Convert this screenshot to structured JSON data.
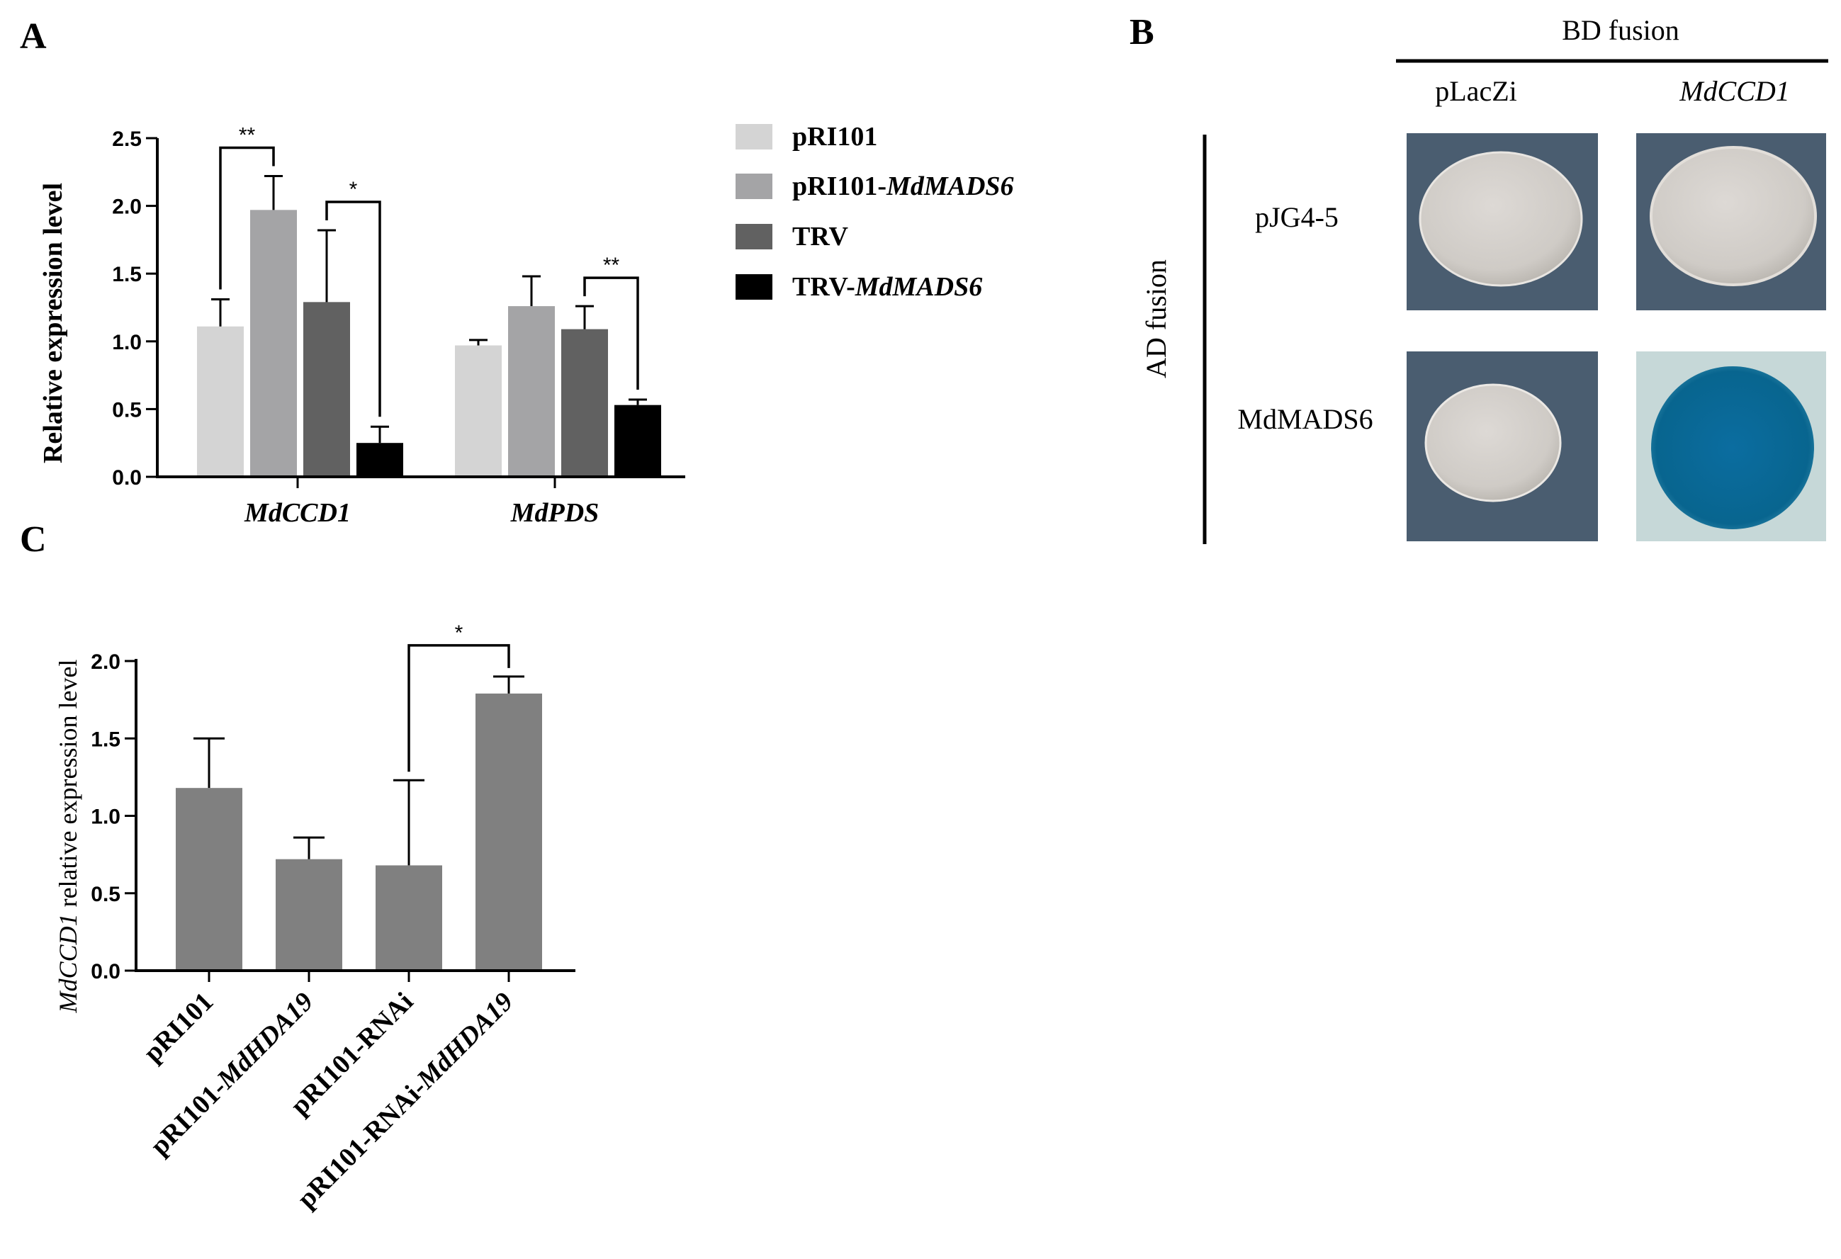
{
  "chart_data": [
    {
      "panel": "A",
      "type": "bar",
      "ylabel": "Relative expression level",
      "ylim": [
        0,
        2.5
      ],
      "yticks": [
        "0.0",
        "0.5",
        "1.0",
        "1.5",
        "2.0",
        "2.5"
      ],
      "categories": [
        "MdCCD1",
        "MdPDS"
      ],
      "series": [
        {
          "name": "pRI101",
          "legend_plain": "pRI101",
          "legend_italic": "",
          "color": "#d4d4d4",
          "values": [
            1.11,
            0.97
          ],
          "errors": [
            0.2,
            0.04
          ]
        },
        {
          "name": "pRI101-MdMADS6",
          "legend_plain": "pRI101-",
          "legend_italic": "MdMADS6",
          "color": "#a4a4a6",
          "values": [
            1.97,
            1.26
          ],
          "errors": [
            0.25,
            0.22
          ]
        },
        {
          "name": "TRV",
          "legend_plain": "TRV",
          "legend_italic": "",
          "color": "#616161",
          "values": [
            1.29,
            1.09
          ],
          "errors": [
            0.53,
            0.17
          ]
        },
        {
          "name": "TRV-MdMADS6",
          "legend_plain": "TRV-",
          "legend_italic": "MdMADS6",
          "color": "#000000",
          "values": [
            0.25,
            0.53
          ],
          "errors": [
            0.12,
            0.04
          ]
        }
      ],
      "significance": [
        {
          "category": 0,
          "from": 0,
          "to": 1,
          "label": "**"
        },
        {
          "category": 0,
          "from": 2,
          "to": 3,
          "label": "*"
        },
        {
          "category": 1,
          "from": 2,
          "to": 3,
          "label": "**"
        }
      ]
    },
    {
      "panel": "C",
      "type": "bar",
      "ylabel_italic": "MdCCD1",
      "ylabel_rest": " relative expression level",
      "ylim": [
        0,
        2.0
      ],
      "yticks": [
        "0.0",
        "0.5",
        "1.0",
        "1.5",
        "2.0"
      ],
      "color": "#808080",
      "categories": [
        {
          "plain": "pRI101",
          "italic": ""
        },
        {
          "plain": "pRI101-",
          "italic": "MdHDA19"
        },
        {
          "plain": "pRI101-RNAi",
          "italic": ""
        },
        {
          "plain": "pRI101-RNAi-",
          "italic": "MdHDA19"
        }
      ],
      "values": [
        1.18,
        0.72,
        0.68,
        1.79
      ],
      "errors": [
        0.32,
        0.14,
        0.55,
        0.11
      ],
      "significance": [
        {
          "from": 2,
          "to": 3,
          "label": "*"
        }
      ]
    }
  ],
  "panel_labels": {
    "a": "A",
    "b": "B",
    "c": "C"
  },
  "y2h": {
    "bd_header": "BD fusion",
    "ad_header": "AD fusion",
    "bd_cols": [
      {
        "text": "pLacZi",
        "italic": false
      },
      {
        "text": "MdCCD1",
        "italic": true
      }
    ],
    "ad_rows": [
      "pJG4-5",
      "MdMADS6"
    ],
    "colonies": [
      {
        "row": 0,
        "col": 0,
        "result": "white"
      },
      {
        "row": 0,
        "col": 1,
        "result": "white"
      },
      {
        "row": 1,
        "col": 0,
        "result": "white"
      },
      {
        "row": 1,
        "col": 1,
        "result": "blue"
      }
    ],
    "colors": {
      "plate": "#4a5d70",
      "plate_light": "#c6d8d8",
      "colony_white": "#d8d4d0",
      "colony_blue": "#0a6a9a"
    }
  }
}
